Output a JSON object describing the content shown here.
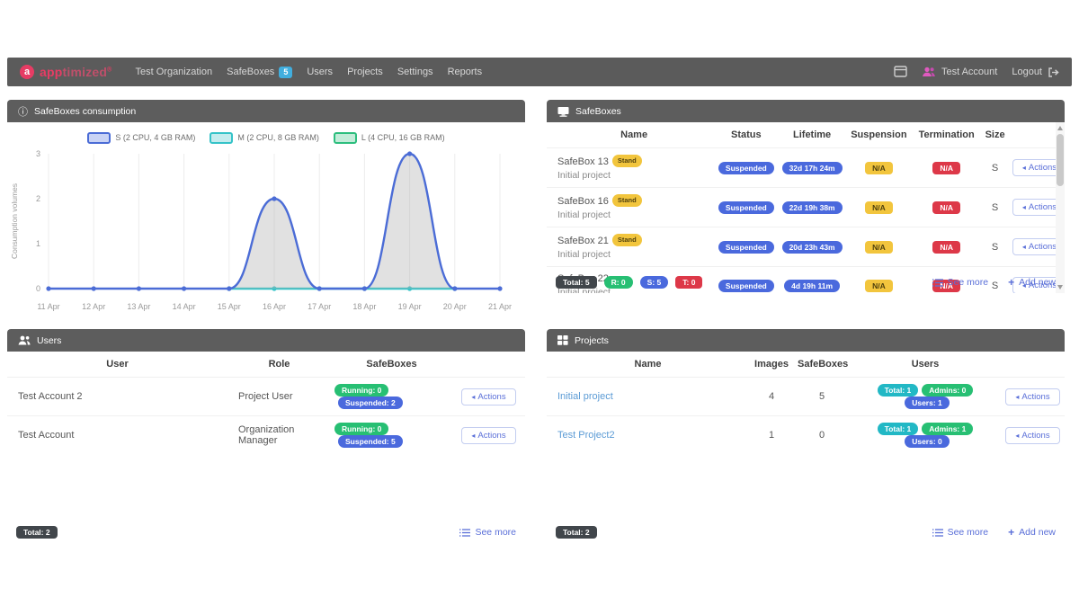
{
  "navbar": {
    "brand": {
      "bold": "app",
      "rest": "timized",
      "reg": "®",
      "initial": "a"
    },
    "items": [
      {
        "label": "Test Organization"
      },
      {
        "label": "SafeBoxes",
        "badge": "5"
      },
      {
        "label": "Users"
      },
      {
        "label": "Projects"
      },
      {
        "label": "Settings"
      },
      {
        "label": "Reports"
      }
    ],
    "account_label": "Test Account",
    "logout_label": "Logout"
  },
  "icons": {
    "info": "ⓘ",
    "safeboxes_panel": "monitor",
    "users_panel": "people",
    "projects_panel": "grid",
    "navbar_calendar": "calendar",
    "navbar_account": "people",
    "navbar_logout": "logout-arrow",
    "see_more": "list",
    "add_new": "+",
    "actions_caret": "◂"
  },
  "colors": {
    "navbar_bg": "#5b5b5b",
    "panel_head_bg": "#5d5d5d",
    "brand_pink": "#e73c64",
    "accent_blue": "#4a69dd",
    "green": "#27bf73",
    "red": "#dd3848",
    "yellow": "#f2c53d",
    "teal": "#22b8c5",
    "link_blue": "#5a6fd8",
    "series_s": "#4b6cd6",
    "series_m": "#35c3c8",
    "series_l": "#2dbe7e"
  },
  "consumption_panel": {
    "title": "SafeBoxes consumption"
  },
  "chart_data": {
    "type": "line",
    "title": "SafeBoxes consumption",
    "x": [
      "11 Apr",
      "12 Apr",
      "13 Apr",
      "14 Apr",
      "15 Apr",
      "16 Apr",
      "17 Apr",
      "18 Apr",
      "19 Apr",
      "20 Apr",
      "21 Apr"
    ],
    "ylabel": "Consumption volumes",
    "xlabel": "",
    "ylim": [
      0,
      3
    ],
    "yticks": [
      0,
      1,
      2,
      3
    ],
    "grid": "vertical-only",
    "legend_position": "top",
    "series": [
      {
        "name": "S (2 CPU, 4 GB RAM)",
        "color": "#4b6cd6",
        "legend_fill": "#c9d3f5",
        "area_fill": "rgba(175,175,175,0.38)",
        "values": [
          0,
          0,
          0,
          0,
          0,
          2,
          0,
          0,
          3,
          0,
          0
        ]
      },
      {
        "name": "M (2 CPU, 8 GB RAM)",
        "color": "#35c3c8",
        "legend_fill": "#c4ecee",
        "area_fill": null,
        "values": [
          null,
          null,
          null,
          null,
          0,
          0,
          0,
          0,
          0,
          0,
          null
        ]
      },
      {
        "name": "L (4 CPU, 16 GB RAM)",
        "color": "#2dbe7e",
        "legend_fill": "#c3ecd9",
        "area_fill": null,
        "values": [
          null,
          null,
          null,
          null,
          null,
          null,
          null,
          null,
          null,
          null,
          null
        ]
      }
    ]
  },
  "safeboxes_panel": {
    "title": "SafeBoxes",
    "columns": [
      "Name",
      "Status",
      "Lifetime",
      "Suspension",
      "Termination",
      "Size",
      ""
    ],
    "actions_label": "Actions",
    "rows": [
      {
        "name": "SafeBox 13",
        "tag": "Stand",
        "project": "Initial project",
        "status": "Suspended",
        "lifetime": "32d 17h 24m",
        "suspension": "N/A",
        "termination": "N/A",
        "size": "S"
      },
      {
        "name": "SafeBox 16",
        "tag": "Stand",
        "project": "Initial project",
        "status": "Suspended",
        "lifetime": "22d 19h 38m",
        "suspension": "N/A",
        "termination": "N/A",
        "size": "S"
      },
      {
        "name": "SafeBox 21",
        "tag": "Stand",
        "project": "Initial project",
        "status": "Suspended",
        "lifetime": "20d 23h 43m",
        "suspension": "N/A",
        "termination": "N/A",
        "size": "S"
      },
      {
        "name": "SafeBox 22",
        "tag": null,
        "project": "Initial project",
        "status": "Suspended",
        "lifetime": "4d 19h 11m",
        "suspension": "N/A",
        "termination": "N/A",
        "size": "S"
      }
    ],
    "footer_badges": [
      {
        "label": "Total: 5",
        "color": "dark"
      },
      {
        "label": "R: 0",
        "color": "green"
      },
      {
        "label": "S: 5",
        "color": "blue"
      },
      {
        "label": "T: 0",
        "color": "red"
      }
    ],
    "see_more": "See more",
    "add_new": "Add new"
  },
  "users_panel": {
    "title": "Users",
    "columns": [
      "User",
      "Role",
      "SafeBoxes",
      ""
    ],
    "actions_label": "Actions",
    "rows": [
      {
        "user": "Test Account 2",
        "role": "Project User",
        "badges": [
          {
            "label": "Running: 0",
            "color": "green"
          },
          {
            "label": "Suspended: 2",
            "color": "blue"
          }
        ]
      },
      {
        "user": "Test Account",
        "role": "Organization Manager",
        "badges": [
          {
            "label": "Running: 0",
            "color": "green"
          },
          {
            "label": "Suspended: 5",
            "color": "blue"
          }
        ]
      }
    ],
    "footer_badges": [
      {
        "label": "Total: 2",
        "color": "dark"
      }
    ],
    "see_more": "See more"
  },
  "projects_panel": {
    "title": "Projects",
    "columns": [
      "Name",
      "Images",
      "SafeBoxes",
      "Users",
      ""
    ],
    "actions_label": "Actions",
    "rows": [
      {
        "name": "Initial project",
        "images": "4",
        "safeboxes": "5",
        "badges": [
          {
            "label": "Total: 1",
            "color": "teal"
          },
          {
            "label": "Admins: 0",
            "color": "green"
          },
          {
            "label": "Users: 1",
            "color": "blue"
          }
        ]
      },
      {
        "name": "Test Project2",
        "images": "1",
        "safeboxes": "0",
        "badges": [
          {
            "label": "Total: 1",
            "color": "teal"
          },
          {
            "label": "Admins: 1",
            "color": "green"
          },
          {
            "label": "Users: 0",
            "color": "blue"
          }
        ]
      }
    ],
    "footer_badges": [
      {
        "label": "Total: 2",
        "color": "dark"
      }
    ],
    "see_more": "See more",
    "add_new": "Add new"
  }
}
